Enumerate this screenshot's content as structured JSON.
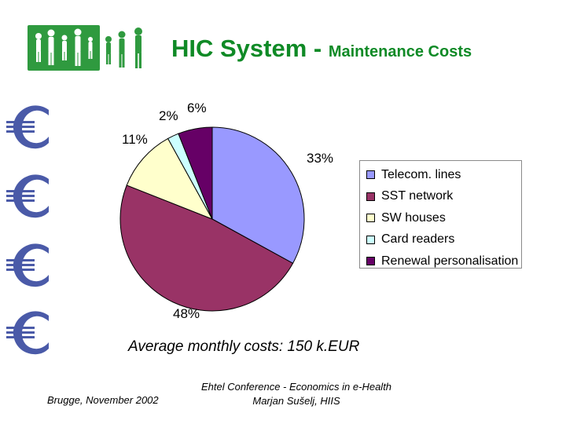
{
  "header": {
    "title_main": "HIC System - ",
    "title_sub": "Maintenance Costs"
  },
  "logo": {
    "color": "#2f9a3f"
  },
  "decor": {
    "euro_icon": "euro-sign-icon",
    "euro_color": "#4a5aa8",
    "euro_count": 4
  },
  "chart_data": {
    "type": "pie",
    "slices": [
      {
        "label": "Telecom. lines",
        "value": 33,
        "display": "33%",
        "color": "#9999ff"
      },
      {
        "label": "SST network",
        "value": 48,
        "display": "48%",
        "color": "#993366"
      },
      {
        "label": "SW houses",
        "value": 11,
        "display": "11%",
        "color": "#ffffcc"
      },
      {
        "label": "Card readers",
        "value": 2,
        "display": "2%",
        "color": "#ccffff"
      },
      {
        "label": "Renewal personalisation",
        "value": 6,
        "display": "6%",
        "color": "#660066"
      }
    ],
    "legend_position": "right"
  },
  "caption": "Average monthly costs: 150 k.EUR",
  "footer": {
    "left": "Brugge, November 2002",
    "center_line1": "Ehtel Conference - Economics in e-Health",
    "center_line2": "Marjan Sušelj, HIIS"
  }
}
